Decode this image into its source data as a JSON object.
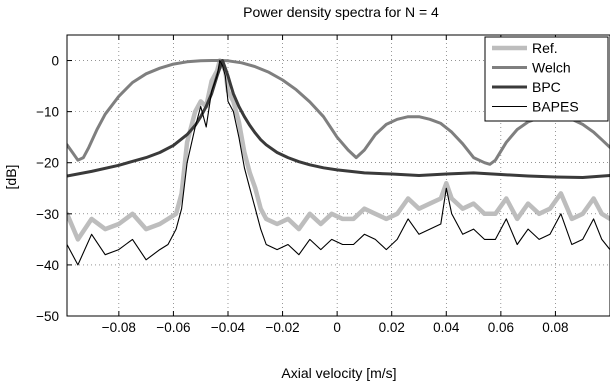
{
  "chart_data": {
    "type": "line",
    "title": "Power density spectra for N = 4",
    "xlabel": "Axial velocity [m/s]",
    "ylabel": "[dB]",
    "xlim": [
      -0.099,
      0.1
    ],
    "ylim": [
      -50,
      5
    ],
    "xticks": [
      -0.08,
      -0.06,
      -0.04,
      -0.02,
      0,
      0.02,
      0.04,
      0.06,
      0.08
    ],
    "yticks": [
      0,
      -10,
      -20,
      -30,
      -40,
      -50
    ],
    "xtick_labels": [
      "−0.08",
      "−0.06",
      "−0.04",
      "−0.02",
      "0",
      "0.02",
      "0.04",
      "0.06",
      "0.08"
    ],
    "ytick_labels": [
      "0",
      "−10",
      "−20",
      "−30",
      "−40",
      "−50"
    ],
    "grid": true,
    "legend_position": "top-right",
    "series": [
      {
        "name": "Ref.",
        "color": "#bdbdbd",
        "style": "thick",
        "x": [
          -0.099,
          -0.095,
          -0.09,
          -0.085,
          -0.08,
          -0.075,
          -0.07,
          -0.065,
          -0.062,
          -0.059,
          -0.057,
          -0.055,
          -0.052,
          -0.05,
          -0.048,
          -0.046,
          -0.044,
          -0.043,
          -0.042,
          -0.041,
          -0.04,
          -0.038,
          -0.036,
          -0.034,
          -0.032,
          -0.03,
          -0.028,
          -0.026,
          -0.022,
          -0.018,
          -0.014,
          -0.01,
          -0.006,
          -0.002,
          0.002,
          0.006,
          0.01,
          0.014,
          0.018,
          0.022,
          0.026,
          0.03,
          0.034,
          0.038,
          0.04,
          0.042,
          0.046,
          0.05,
          0.054,
          0.058,
          0.062,
          0.066,
          0.07,
          0.074,
          0.078,
          0.082,
          0.086,
          0.09,
          0.094,
          0.097,
          0.1
        ],
        "y": [
          -30,
          -35,
          -31,
          -33,
          -32,
          -30,
          -33,
          -32,
          -31,
          -30,
          -26,
          -16,
          -10,
          -8,
          -9,
          -4,
          -2,
          0,
          -1,
          -2,
          -6,
          -8,
          -12,
          -18,
          -22,
          -25,
          -29,
          -31,
          -32,
          -31,
          -33,
          -30,
          -32,
          -30,
          -31,
          -31,
          -29,
          -30,
          -31,
          -30,
          -27,
          -29,
          -28,
          -27,
          -24,
          -27,
          -29,
          -28,
          -30,
          -30,
          -27,
          -31,
          -28,
          -30,
          -29,
          -26,
          -31,
          -30,
          -27,
          -30,
          -31
        ]
      },
      {
        "name": "Welch",
        "color": "#7f7f7f",
        "style": "medium",
        "x": [
          -0.099,
          -0.097,
          -0.095,
          -0.093,
          -0.091,
          -0.088,
          -0.085,
          -0.08,
          -0.075,
          -0.07,
          -0.065,
          -0.06,
          -0.055,
          -0.05,
          -0.046,
          -0.043,
          -0.04,
          -0.035,
          -0.03,
          -0.025,
          -0.02,
          -0.015,
          -0.01,
          -0.005,
          0,
          0.004,
          0.007,
          0.01,
          0.014,
          0.018,
          0.022,
          0.026,
          0.03,
          0.034,
          0.038,
          0.042,
          0.046,
          0.05,
          0.054,
          0.056,
          0.058,
          0.062,
          0.066,
          0.07,
          0.074,
          0.078,
          0.082,
          0.086,
          0.09,
          0.094,
          0.097,
          0.1
        ],
        "y": [
          -16.5,
          -18,
          -19.5,
          -19,
          -17,
          -13.5,
          -10.5,
          -7,
          -4.3,
          -2.6,
          -1.5,
          -0.7,
          -0.25,
          -0.05,
          0,
          0,
          -0.05,
          -0.45,
          -1.2,
          -2.3,
          -3.8,
          -5.7,
          -8.1,
          -11,
          -15,
          -17.5,
          -19,
          -17.5,
          -14.5,
          -12.5,
          -11.5,
          -11,
          -11,
          -11.5,
          -12.3,
          -14,
          -16.3,
          -19,
          -20,
          -20.3,
          -19.5,
          -16,
          -13.5,
          -12,
          -11.2,
          -11,
          -11,
          -11.5,
          -12.5,
          -14,
          -15.5,
          -17
        ]
      },
      {
        "name": "BPC",
        "color": "#3a3a3a",
        "style": "medium",
        "x": [
          -0.099,
          -0.09,
          -0.08,
          -0.07,
          -0.065,
          -0.06,
          -0.055,
          -0.052,
          -0.05,
          -0.048,
          -0.046,
          -0.045,
          -0.044,
          -0.043,
          -0.042,
          -0.041,
          -0.04,
          -0.039,
          -0.038,
          -0.036,
          -0.034,
          -0.032,
          -0.03,
          -0.028,
          -0.026,
          -0.022,
          -0.018,
          -0.014,
          -0.01,
          -0.005,
          0,
          0.01,
          0.02,
          0.03,
          0.04,
          0.05,
          0.06,
          0.07,
          0.08,
          0.09,
          0.1
        ],
        "y": [
          -22.6,
          -21.7,
          -20.5,
          -19,
          -18,
          -16.6,
          -14.5,
          -12.7,
          -11,
          -9,
          -6.5,
          -4.8,
          -3,
          -1.5,
          0,
          -1.5,
          -3,
          -4.8,
          -6.5,
          -9,
          -11,
          -12.7,
          -14.2,
          -15.5,
          -16.5,
          -18,
          -19,
          -19.8,
          -20.4,
          -21,
          -21.4,
          -22,
          -22.2,
          -22.5,
          -22.2,
          -22,
          -22.3,
          -22.6,
          -22.8,
          -22.9,
          -22.5
        ]
      },
      {
        "name": "BAPES",
        "color": "#000000",
        "style": "thin",
        "x": [
          -0.099,
          -0.095,
          -0.09,
          -0.085,
          -0.08,
          -0.075,
          -0.07,
          -0.065,
          -0.062,
          -0.059,
          -0.057,
          -0.055,
          -0.052,
          -0.05,
          -0.048,
          -0.046,
          -0.044,
          -0.043,
          -0.042,
          -0.041,
          -0.04,
          -0.038,
          -0.036,
          -0.034,
          -0.032,
          -0.03,
          -0.028,
          -0.026,
          -0.022,
          -0.018,
          -0.014,
          -0.01,
          -0.006,
          -0.002,
          0.002,
          0.006,
          0.01,
          0.014,
          0.018,
          0.022,
          0.026,
          0.03,
          0.034,
          0.038,
          0.04,
          0.042,
          0.046,
          0.05,
          0.054,
          0.058,
          0.062,
          0.066,
          0.07,
          0.074,
          0.078,
          0.082,
          0.086,
          0.09,
          0.094,
          0.097,
          0.1
        ],
        "y": [
          -36,
          -40,
          -34,
          -38,
          -37,
          -35,
          -39,
          -37,
          -36,
          -33,
          -29,
          -20,
          -13,
          -9,
          -13,
          -6,
          -3,
          0,
          -1,
          -3,
          -8,
          -10,
          -15,
          -21,
          -25,
          -29,
          -33,
          -36,
          -37,
          -36,
          -38,
          -35,
          -37,
          -35,
          -36,
          -36,
          -34,
          -35,
          -37,
          -35,
          -31,
          -34,
          -33,
          -32,
          -25,
          -30,
          -34,
          -33,
          -35,
          -35,
          -31,
          -36,
          -33,
          -35,
          -34,
          -30,
          -36,
          -35,
          -31,
          -35,
          -37
        ]
      }
    ]
  }
}
